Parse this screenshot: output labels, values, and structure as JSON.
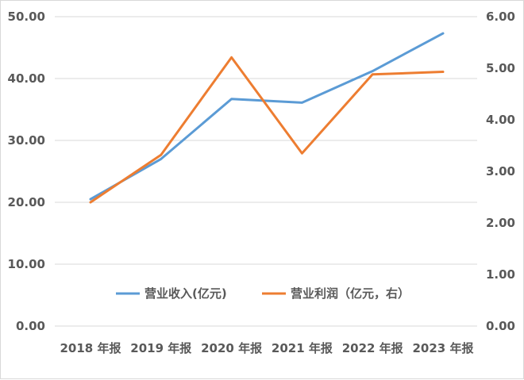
{
  "chart_data": {
    "type": "line",
    "categories": [
      "2018 年报",
      "2019 年报",
      "2020 年报",
      "2021 年报",
      "2022 年报",
      "2023 年报"
    ],
    "series": [
      {
        "name": "营业收入(亿元)",
        "axis": "left",
        "color": "#5b9bd5",
        "values": [
          20.5,
          27.0,
          36.7,
          36.1,
          41.2,
          47.3
        ]
      },
      {
        "name": "营业利润（亿元，右）",
        "axis": "right",
        "color": "#ed7d31",
        "values": [
          2.4,
          3.32,
          5.21,
          3.35,
          4.88,
          4.93
        ]
      }
    ],
    "y_left": {
      "range": [
        0,
        50
      ],
      "ticks": [
        "0.00",
        "10.00",
        "20.00",
        "30.00",
        "40.00",
        "50.00"
      ]
    },
    "y_right": {
      "range": [
        0,
        6
      ],
      "ticks": [
        "0.00",
        "1.00",
        "2.00",
        "3.00",
        "4.00",
        "5.00",
        "6.00"
      ]
    },
    "grid": true,
    "legend_position": "inside-bottom-center"
  }
}
